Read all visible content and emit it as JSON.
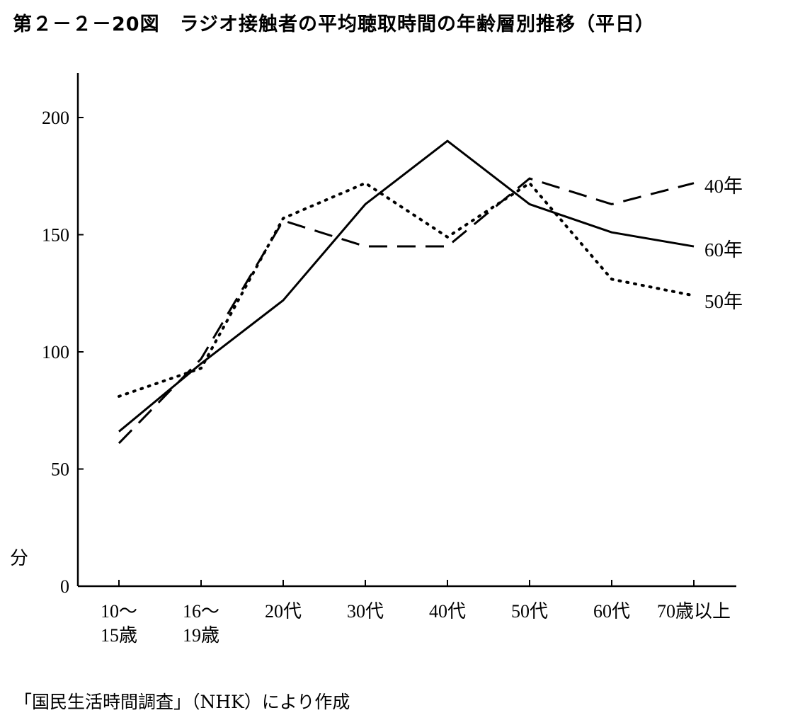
{
  "chart_data": {
    "type": "line",
    "title": "第２－２－20図　ラジオ接触者の平均聴取時間の年齢層別推移（平日）",
    "ylabel": "分",
    "xlabel": "",
    "ylim": [
      0,
      220
    ],
    "yticks": [
      0,
      50,
      100,
      150,
      200
    ],
    "categories": [
      [
        "10～",
        "15歳"
      ],
      [
        "16～",
        "19歳"
      ],
      [
        "20代"
      ],
      [
        "30代"
      ],
      [
        "40代"
      ],
      [
        "50代"
      ],
      [
        "60代"
      ],
      [
        "70歳以上"
      ]
    ],
    "series": [
      {
        "name": "40年",
        "style": "dashed",
        "values": [
          61,
          97,
          156,
          145,
          145,
          174,
          163,
          172
        ]
      },
      {
        "name": "50年",
        "style": "dotted",
        "values": [
          81,
          93,
          157,
          172,
          149,
          172,
          131,
          124
        ]
      },
      {
        "name": "60年",
        "style": "solid",
        "values": [
          66,
          95,
          122,
          163,
          190,
          163,
          151,
          145
        ]
      }
    ],
    "grid": false,
    "legend": "line-end labels"
  },
  "source": "「国民生活時間調査」（NHK）により作成"
}
